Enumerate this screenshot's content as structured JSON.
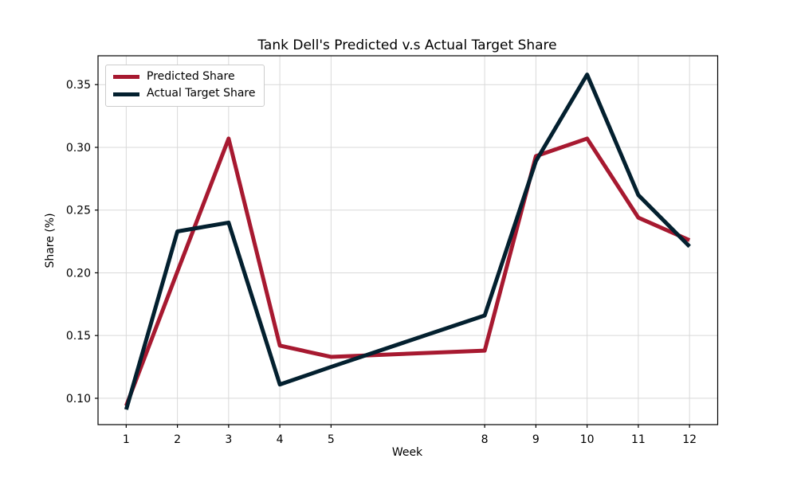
{
  "figure": {
    "background": "#ffffff",
    "text_color": "#000000",
    "spine_color": "#000000"
  },
  "chart_data": {
    "type": "line",
    "title": "Tank Dell's Predicted v.s Actual Target Share",
    "xlabel": "Week",
    "ylabel": "Share (%)",
    "x": [
      1,
      2,
      3,
      4,
      5,
      8,
      9,
      10,
      11,
      12
    ],
    "series": [
      {
        "name": "Predicted Share",
        "color": "#A71930",
        "values": [
          0.094,
          0.201,
          0.307,
          0.142,
          0.133,
          0.138,
          0.293,
          0.307,
          0.244,
          0.226
        ]
      },
      {
        "name": "Actual Target Share",
        "color": "#03202F",
        "values": [
          0.091,
          0.233,
          0.24,
          0.111,
          0.125,
          0.166,
          0.289,
          0.358,
          0.262,
          0.221
        ]
      }
    ],
    "xticks": [
      1,
      2,
      3,
      4,
      5,
      8,
      9,
      10,
      11,
      12
    ],
    "xtick_labels": [
      "1",
      "2",
      "3",
      "4",
      "5",
      "8",
      "9",
      "10",
      "11",
      "12"
    ],
    "yticks": [
      0.1,
      0.15,
      0.2,
      0.25,
      0.3,
      0.35
    ],
    "ytick_labels": [
      "0.10",
      "0.15",
      "0.20",
      "0.25",
      "0.30",
      "0.35"
    ],
    "xlim": [
      0.45,
      12.55
    ],
    "ylim": [
      0.079,
      0.373
    ],
    "grid": true,
    "grid_color": "#d9d9d9",
    "line_width": 5,
    "legend_position": "upper-left"
  }
}
